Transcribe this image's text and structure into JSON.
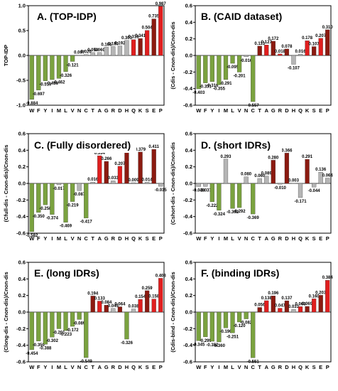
{
  "figure": {
    "colors": {
      "green": "#7aa23f",
      "gray": "#b5b5b5",
      "red_dark": "#8b1a10",
      "red_bright": "#e01e1e",
      "title_box_fill": "#ffffff"
    }
  },
  "chart_data": [
    {
      "id": "A",
      "type": "bar",
      "title": "A. (TOP-IDP)",
      "ylabel": "TOP-IDP",
      "ylim": [
        -1.0,
        1.0
      ],
      "yticks": [
        -1.0,
        -0.5,
        0.0,
        0.5,
        1.0
      ],
      "ytick_labels": [
        "-1.0",
        "-0.5",
        "0.0",
        "0.5",
        "1.0"
      ],
      "categories": [
        "W",
        "F",
        "Y",
        "I",
        "M",
        "L",
        "V",
        "N",
        "C",
        "T",
        "A",
        "G",
        "R",
        "D",
        "H",
        "Q",
        "K",
        "S",
        "E",
        "P"
      ],
      "values": [
        -0.884,
        -0.697,
        -0.51,
        -0.486,
        -0.462,
        -0.326,
        -0.121,
        0.007,
        0.02,
        0.059,
        0.06,
        0.166,
        0.18,
        0.192,
        0.303,
        0.318,
        0.341,
        0.504,
        0.735,
        0.987
      ],
      "bar_colors": [
        "green",
        "green",
        "green",
        "green",
        "green",
        "green",
        "green",
        "gray",
        "gray",
        "gray",
        "gray",
        "gray",
        "gray",
        "gray",
        "gray",
        "red_bright",
        "red_dark",
        "red_bright",
        "red_dark",
        "red_bright"
      ],
      "data_labels": [
        "-0.884",
        "-0.697",
        "-0.510",
        "-0.486",
        "-0.462",
        "-0.326",
        "-0.121",
        "0.007",
        "0.020",
        "0.059",
        "0.060",
        "0.166",
        "0.180",
        "0.192",
        "0.303",
        "0.318",
        "0.341",
        "0.504",
        "0.735",
        "0.987"
      ]
    },
    {
      "id": "B",
      "type": "bar",
      "title": "B. (CAID dataset)",
      "ylabel": "(Cdis - Cnon-dis)/Cnon-dis",
      "ylim": [
        -0.6,
        0.6
      ],
      "yticks": [
        -0.6,
        -0.4,
        -0.2,
        0.0,
        0.2,
        0.4,
        0.6
      ],
      "ytick_labels": [
        "-0.6",
        "-0.4",
        "-0.2",
        "0.0",
        "0.2",
        "0.4",
        "0.6"
      ],
      "categories": [
        "W",
        "F",
        "Y",
        "I",
        "M",
        "L",
        "V",
        "N",
        "C",
        "T",
        "A",
        "G",
        "R",
        "D",
        "H",
        "Q",
        "K",
        "S",
        "E",
        "P"
      ],
      "values": [
        -0.403,
        -0.331,
        -0.316,
        -0.355,
        -0.291,
        -0.095,
        -0.201,
        -0.016,
        -0.557,
        0.113,
        0.127,
        0.172,
        0.018,
        0.078,
        -0.107,
        0.016,
        0.178,
        0.107,
        0.207,
        0.31
      ],
      "bar_colors": [
        "green",
        "green",
        "green",
        "green",
        "green",
        "green",
        "green",
        "gray",
        "green",
        "red_dark",
        "red_bright",
        "red_dark",
        "red_bright",
        "red_dark",
        "gray",
        "gray",
        "red_bright",
        "red_dark",
        "red_bright",
        "red_dark"
      ],
      "data_labels": [
        "-0.403",
        "-0.331",
        "-0.316",
        "-0.355",
        "-0.291",
        "-0.095",
        "-0.201",
        "-0.016",
        "-0.557",
        "0.113",
        "0.127",
        "0.172",
        "0.018",
        "0.078",
        "-0.107",
        "0.016",
        "0.178",
        "0.107",
        "0.207",
        "0.310"
      ]
    },
    {
      "id": "C",
      "type": "bar",
      "title": "C. (Fully disordered)",
      "ylabel": "(Cfull-dis - Cnon-dis)/Cnon-dis",
      "ylim": [
        -0.6,
        0.6
      ],
      "yticks": [
        -0.6,
        -0.4,
        -0.2,
        0.0,
        0.2,
        0.4,
        0.6
      ],
      "ytick_labels": [
        "-0.6",
        "-0.4",
        "-0.2",
        "0.0",
        "0.2",
        "0.4",
        "0.6"
      ],
      "categories": [
        "W",
        "F",
        "Y",
        "I",
        "M",
        "L",
        "V",
        "N",
        "C",
        "T",
        "A",
        "G",
        "R",
        "D",
        "H",
        "Q",
        "K",
        "S",
        "E",
        "P"
      ],
      "values": [
        -0.582,
        -0.35,
        -0.258,
        -0.374,
        -0.017,
        -0.469,
        -0.219,
        -0.087,
        -0.417,
        0.016,
        0.334,
        0.266,
        0.033,
        0.207,
        0.375,
        0.009,
        0.379,
        0.014,
        0.411,
        -0.035
      ],
      "bar_colors": [
        "green",
        "green",
        "green",
        "green",
        "gray",
        "green",
        "green",
        "gray",
        "green",
        "gray",
        "red_bright",
        "red_dark",
        "gray",
        "red_bright",
        "red_dark",
        "gray",
        "red_dark",
        "gray",
        "red_dark",
        "gray"
      ],
      "data_labels": [
        "-0.582",
        "-0.350",
        "-0.258",
        "-0.374",
        "-0.017",
        "-0.469",
        "-0.219",
        "-0.087",
        "-0.417",
        "0.016",
        "0.334",
        "0.266",
        "0.033",
        "0.207",
        "0.375",
        "0.009",
        "0.379",
        "0.014",
        "0.411",
        "-0.035"
      ]
    },
    {
      "id": "D",
      "type": "bar",
      "title": "D. (short IDRs)",
      "ylabel": "(Cshort-dis - Cnon-dis)/Cnon-dis",
      "ylim": [
        -0.6,
        0.6
      ],
      "yticks": [
        -0.6,
        -0.4,
        -0.2,
        0.0,
        0.2,
        0.4,
        0.6
      ],
      "ytick_labels": [
        "-0.6",
        "-0.4",
        "-0.2",
        "0.0",
        "0.2",
        "0.4",
        "0.6"
      ],
      "categories": [
        "W",
        "F",
        "Y",
        "I",
        "M",
        "L",
        "V",
        "N",
        "C",
        "T",
        "A",
        "G",
        "R",
        "D",
        "H",
        "Q",
        "K",
        "S",
        "E",
        "P"
      ],
      "values": [
        -0.038,
        -0.037,
        -0.222,
        -0.324,
        0.293,
        -0.302,
        -0.292,
        0.08,
        -0.369,
        0.06,
        0.089,
        0.28,
        -0.01,
        0.366,
        0.003,
        -0.171,
        0.291,
        -0.044,
        0.136,
        0.064
      ],
      "bar_colors": [
        "gray",
        "gray",
        "green",
        "green",
        "gray",
        "green",
        "green",
        "gray",
        "green",
        "gray",
        "gray",
        "red_dark",
        "gray",
        "red_dark",
        "gray",
        "gray",
        "red_dark",
        "gray",
        "gray",
        "gray"
      ],
      "data_labels": [
        "-0.038",
        "-0.037",
        "-0.222",
        "-0.324",
        "0.293",
        "-0.302",
        "-0.292",
        "0.080",
        "-0.369",
        "0.060",
        "0.089",
        "0.280",
        "-0.010",
        "0.366",
        "0.003",
        "-0.171",
        "0.291",
        "-0.044",
        "0.136",
        "0.064"
      ]
    },
    {
      "id": "E",
      "type": "bar",
      "title": "E. (long IDRs)",
      "ylabel": "(Clong-dis - Cnon-dis)/Cnon-dis",
      "ylim": [
        -0.6,
        0.6
      ],
      "yticks": [
        -0.6,
        -0.4,
        -0.2,
        0.0,
        0.2,
        0.4,
        0.6
      ],
      "ytick_labels": [
        "-0.6",
        "-0.4",
        "-0.2",
        "0.0",
        "0.2",
        "0.4",
        "0.6"
      ],
      "categories": [
        "W",
        "F",
        "Y",
        "I",
        "M",
        "L",
        "V",
        "N",
        "C",
        "T",
        "A",
        "G",
        "R",
        "D",
        "H",
        "Q",
        "K",
        "S",
        "E",
        "P"
      ],
      "values": [
        -0.454,
        -0.35,
        -0.388,
        -0.302,
        -0.201,
        -0.223,
        -0.172,
        -0.089,
        -0.549,
        0.194,
        0.133,
        0.084,
        0.045,
        0.064,
        -0.326,
        0.038,
        0.154,
        0.259,
        0.158,
        0.408
      ],
      "bar_colors": [
        "green",
        "green",
        "green",
        "green",
        "green",
        "green",
        "green",
        "green",
        "green",
        "red_dark",
        "red_bright",
        "red_dark",
        "gray",
        "red_dark",
        "green",
        "gray",
        "red_bright",
        "red_dark",
        "red_bright",
        "red_bright"
      ],
      "data_labels": [
        "-0.454",
        "-0.350",
        "-0.388",
        "-0.302",
        "-0.201",
        "-0.223",
        "-0.172",
        "-0.089",
        "-0.549",
        "0.194",
        "0.133",
        "0.084",
        "0.045",
        "0.064",
        "-0.326",
        "0.038",
        "0.154",
        "0.259",
        "0.158",
        "0.408"
      ]
    },
    {
      "id": "F",
      "type": "bar",
      "title": "F. (binding IDRs)",
      "ylabel": "(Cdis-bind - Cnon-dis)/Cnon-dis",
      "ylim": [
        -0.6,
        0.6
      ],
      "yticks": [
        -0.6,
        -0.4,
        -0.2,
        0.0,
        0.2,
        0.4,
        0.6
      ],
      "ytick_labels": [
        "-0.6",
        "-0.4",
        "-0.2",
        "0.0",
        "0.2",
        "0.4",
        "0.6"
      ],
      "categories": [
        "W",
        "F",
        "Y",
        "I",
        "M",
        "L",
        "V",
        "N",
        "C",
        "T",
        "A",
        "G",
        "R",
        "D",
        "H",
        "Q",
        "K",
        "S",
        "E",
        "P"
      ],
      "values": [
        -0.345,
        -0.299,
        -0.352,
        -0.36,
        -0.19,
        -0.251,
        -0.12,
        -0.082,
        -0.551,
        0.056,
        0.138,
        0.196,
        0.047,
        0.137,
        0.033,
        0.066,
        0.069,
        0.16,
        0.203,
        0.384
      ],
      "bar_colors": [
        "green",
        "green",
        "green",
        "green",
        "green",
        "green",
        "green",
        "green",
        "green",
        "red_dark",
        "red_bright",
        "red_dark",
        "red_bright",
        "red_dark",
        "gray",
        "red_bright",
        "red_dark",
        "red_bright",
        "red_dark",
        "red_bright"
      ],
      "data_labels": [
        "-0.345",
        "-0.299",
        "-0.352",
        "-0.360",
        "-0.190",
        "-0.251",
        "-0.120",
        "-0.082",
        "-0.551",
        "0.056",
        "0.138",
        "0.196",
        "0.047",
        "0.137",
        "0.033",
        "0.066",
        "0.069",
        "0.160",
        "0.203",
        "0.384"
      ]
    }
  ]
}
